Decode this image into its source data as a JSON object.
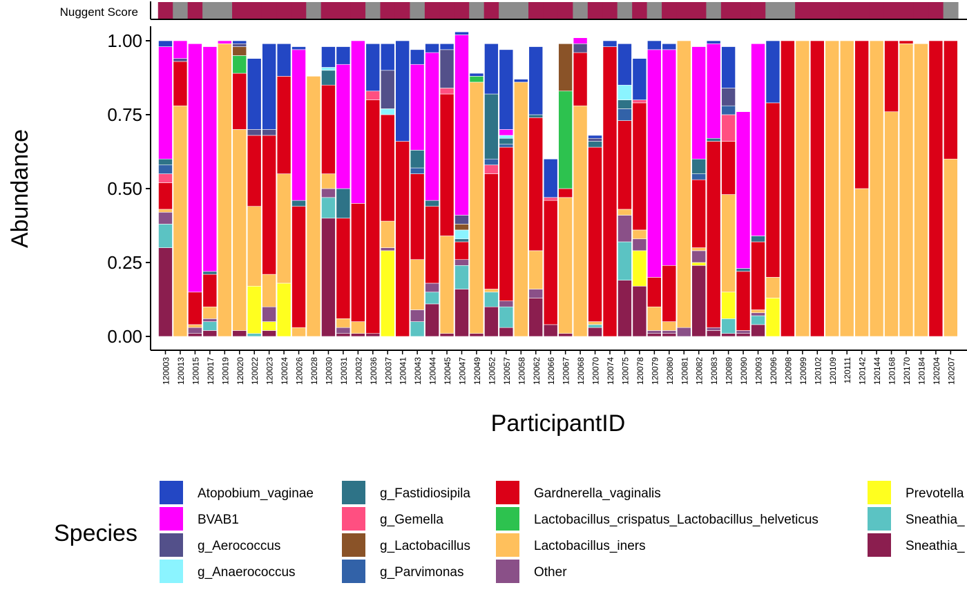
{
  "chart_data": {
    "type": "bar",
    "stacked": true,
    "xlabel": "ParticipantID",
    "ylabel": "Abundance",
    "ylim": [
      0,
      1
    ],
    "yticks": [
      "0.00",
      "0.25",
      "0.50",
      "0.75",
      "1.00"
    ],
    "ytick_values": [
      0,
      0.25,
      0.5,
      0.75,
      1
    ],
    "grid": false,
    "legend_title": "Species",
    "legend_position": "bottom",
    "nugget_label": "Nuggent Score",
    "nugget_colors": {
      "high": "#A21B4F",
      "low": "#8C8C8C"
    },
    "categories": [
      "120003",
      "120013",
      "120015",
      "120017",
      "120019",
      "120020",
      "120022",
      "120023",
      "120024",
      "120026",
      "120028",
      "120030",
      "120031",
      "120032",
      "120036",
      "120037",
      "120041",
      "120043",
      "120044",
      "120045",
      "120047",
      "120049",
      "120052",
      "120057",
      "120058",
      "120062",
      "120066",
      "120067",
      "120068",
      "120070",
      "120074",
      "120075",
      "120078",
      "120079",
      "120080",
      "120081",
      "120082",
      "120083",
      "120089",
      "120090",
      "120093",
      "120096",
      "120098",
      "120099",
      "120102",
      "120109",
      "120111",
      "120142",
      "120144",
      "120168",
      "120170",
      "120184",
      "120204",
      "120207"
    ],
    "nugget": [
      "high",
      "low",
      "high",
      "low",
      "low",
      "high",
      "high",
      "high",
      "high",
      "high",
      "low",
      "high",
      "high",
      "high",
      "low",
      "high",
      "high",
      "low",
      "high",
      "high",
      "high",
      "low",
      "high",
      "low",
      "low",
      "high",
      "high",
      "high",
      "low",
      "high",
      "high",
      "low",
      "high",
      "low",
      "high",
      "high",
      "high",
      "low",
      "high",
      "high",
      "high",
      "low",
      "low",
      "high",
      "high",
      "high",
      "high",
      "high",
      "high",
      "high",
      "high",
      "high",
      "high",
      "low"
    ],
    "series": [
      {
        "name": "Sneathia_",
        "color": "#8B1E4F",
        "values": [
          0.3,
          0,
          0.01,
          0.02,
          0,
          0.02,
          0,
          0.02,
          0,
          0,
          0,
          0.4,
          0.01,
          0.01,
          0.01,
          0,
          0,
          0,
          0.11,
          0.01,
          0.16,
          0.01,
          0.1,
          0.03,
          0,
          0.13,
          0.04,
          0.01,
          0,
          0.03,
          0,
          0.19,
          0.17,
          0.01,
          0.01,
          0,
          0.24,
          0.02,
          0.01,
          0.01,
          0.04,
          0,
          0,
          0,
          0,
          0,
          0,
          0,
          0,
          0,
          0,
          0,
          0,
          0
        ]
      },
      {
        "name": "Sneathia_",
        "color": "#5BC3C3",
        "values": [
          0.08,
          0,
          0,
          0.03,
          0,
          0,
          0.01,
          0,
          0,
          0,
          0,
          0.07,
          0,
          0,
          0,
          0,
          0,
          0.05,
          0.04,
          0,
          0.08,
          0,
          0.05,
          0.07,
          0,
          0,
          0,
          0,
          0,
          0.01,
          0,
          0.13,
          0,
          0,
          0,
          0,
          0,
          0,
          0.05,
          0,
          0.03,
          0,
          0,
          0,
          0,
          0,
          0,
          0,
          0,
          0,
          0,
          0,
          0,
          0
        ]
      },
      {
        "name": "Prevotella",
        "color": "#FFFF1F",
        "values": [
          0,
          0,
          0,
          0,
          0,
          0,
          0.16,
          0.03,
          0.18,
          0,
          0,
          0,
          0,
          0,
          0,
          0.29,
          0,
          0,
          0,
          0,
          0,
          0,
          0,
          0,
          0,
          0,
          0,
          0,
          0,
          0,
          0,
          0,
          0.12,
          0,
          0,
          0,
          0.01,
          0,
          0.09,
          0,
          0,
          0.13,
          0,
          0,
          0,
          0,
          0,
          0,
          0,
          0,
          0,
          0,
          0,
          0
        ]
      },
      {
        "name": "Other",
        "color": "#8A5088",
        "values": [
          0.04,
          0,
          0.02,
          0.01,
          0,
          0,
          0,
          0.05,
          0,
          0,
          0,
          0.03,
          0.02,
          0,
          0,
          0.01,
          0,
          0.04,
          0.03,
          0,
          0.02,
          0,
          0,
          0.02,
          0,
          0.03,
          0,
          0,
          0,
          0,
          0,
          0.09,
          0.04,
          0.01,
          0.01,
          0.03,
          0.04,
          0.01,
          0,
          0.01,
          0.01,
          0,
          0,
          0,
          0,
          0,
          0,
          0,
          0,
          0,
          0,
          0,
          0,
          0
        ]
      },
      {
        "name": "Lactobacillus_iners",
        "color": "#FFC05C",
        "values": [
          0.01,
          0.78,
          0.01,
          0.04,
          0.99,
          0.68,
          0.27,
          0.11,
          0.37,
          0.03,
          0.88,
          0.05,
          0.03,
          0.04,
          0,
          0.09,
          0,
          0.17,
          0,
          0.33,
          0,
          0.85,
          0.01,
          0,
          0.86,
          0.13,
          0,
          0.46,
          0.78,
          0.01,
          0,
          0.02,
          0.03,
          0.08,
          0.03,
          0.97,
          0.01,
          0,
          0.33,
          0,
          0.01,
          0.07,
          0,
          1.0,
          0,
          1.0,
          1.0,
          0.5,
          1.0,
          0.76,
          0.99,
          0.99,
          0,
          0.6
        ]
      },
      {
        "name": "Gardnerella_vaginalis",
        "color": "#DB0017",
        "values": [
          0.09,
          0.15,
          0.11,
          0.11,
          0,
          0.19,
          0.24,
          0.47,
          0.33,
          0.41,
          0,
          0.3,
          0.34,
          0.4,
          0.79,
          0.36,
          0.66,
          0.29,
          0.26,
          0.48,
          0.06,
          0,
          0.39,
          0.52,
          0,
          0.45,
          0.42,
          0.03,
          0.18,
          0.59,
          0.98,
          0.3,
          0.43,
          0.1,
          0.19,
          0,
          0.23,
          0.63,
          0.18,
          0.2,
          0.23,
          0.59,
          1.0,
          0,
          1.0,
          0,
          0,
          0.5,
          0,
          0.24,
          0.01,
          0,
          1.0,
          0.4
        ]
      },
      {
        "name": "Lactobacillus_crispatus_Lactobacillus_helveticus",
        "color": "#2DC24F",
        "values": [
          0,
          0,
          0,
          0,
          0,
          0.06,
          0,
          0,
          0,
          0,
          0,
          0,
          0,
          0,
          0,
          0,
          0,
          0,
          0,
          0,
          0,
          0.02,
          0,
          0,
          0,
          0,
          0,
          0.33,
          0,
          0,
          0,
          0,
          0,
          0,
          0,
          0,
          0,
          0,
          0,
          0,
          0,
          0,
          0,
          0,
          0,
          0,
          0,
          0,
          0,
          0,
          0,
          0,
          0,
          0
        ]
      },
      {
        "name": "g_Gemella",
        "color": "#FF4F81",
        "values": [
          0.03,
          0,
          0,
          0,
          0,
          0,
          0,
          0,
          0,
          0,
          0,
          0,
          0,
          0,
          0.03,
          0,
          0,
          0,
          0,
          0.02,
          0,
          0,
          0.03,
          0,
          0,
          0,
          0.01,
          0,
          0,
          0,
          0,
          0,
          0.01,
          0,
          0,
          0,
          0,
          0,
          0.09,
          0,
          0,
          0,
          0,
          0,
          0,
          0,
          0,
          0,
          0,
          0,
          0,
          0,
          0,
          0
        ]
      },
      {
        "name": "g_Parvimonas",
        "color": "#3262A8",
        "values": [
          0.03,
          0,
          0,
          0,
          0,
          0,
          0,
          0,
          0,
          0,
          0,
          0,
          0,
          0,
          0,
          0,
          0,
          0.02,
          0,
          0,
          0,
          0,
          0.02,
          0.01,
          0,
          0,
          0,
          0,
          0,
          0,
          0,
          0.04,
          0,
          0,
          0,
          0,
          0.02,
          0,
          0.03,
          0,
          0,
          0,
          0,
          0,
          0,
          0,
          0,
          0,
          0,
          0,
          0,
          0,
          0,
          0
        ]
      },
      {
        "name": "g_Fastidiosipila",
        "color": "#2E7387",
        "values": [
          0.02,
          0,
          0,
          0.01,
          0,
          0,
          0,
          0,
          0,
          0.02,
          0,
          0.05,
          0.1,
          0,
          0,
          0,
          0,
          0.06,
          0.02,
          0,
          0.01,
          0,
          0.22,
          0.02,
          0,
          0.01,
          0,
          0,
          0,
          0.02,
          0,
          0.03,
          0,
          0,
          0,
          0,
          0.05,
          0.01,
          0,
          0.01,
          0.02,
          0,
          0,
          0,
          0,
          0,
          0,
          0,
          0,
          0,
          0,
          0,
          0,
          0
        ]
      },
      {
        "name": "g_Anaerococcus",
        "color": "#8BF4FF",
        "values": [
          0,
          0,
          0,
          0,
          0,
          0,
          0,
          0,
          0,
          0,
          0,
          0.01,
          0,
          0,
          0,
          0.02,
          0,
          0,
          0,
          0,
          0.03,
          0,
          0,
          0.01,
          0,
          0,
          0,
          0,
          0,
          0,
          0,
          0.05,
          0,
          0,
          0,
          0,
          0,
          0,
          0,
          0,
          0,
          0,
          0,
          0,
          0,
          0,
          0,
          0,
          0,
          0,
          0,
          0,
          0,
          0
        ]
      },
      {
        "name": "g_Lactobacillus",
        "color": "#8A5328",
        "values": [
          0,
          0,
          0,
          0,
          0,
          0.03,
          0,
          0,
          0,
          0,
          0,
          0,
          0,
          0,
          0,
          0,
          0,
          0,
          0,
          0,
          0.02,
          0,
          0,
          0,
          0,
          0,
          0,
          0.16,
          0,
          0,
          0,
          0,
          0,
          0,
          0,
          0,
          0,
          0,
          0,
          0,
          0,
          0,
          0,
          0,
          0,
          0,
          0,
          0,
          0,
          0,
          0,
          0,
          0,
          0
        ]
      },
      {
        "name": "g_Aerococcus",
        "color": "#53508A",
        "values": [
          0,
          0.01,
          0,
          0,
          0,
          0.01,
          0.02,
          0.02,
          0,
          0,
          0,
          0,
          0,
          0,
          0,
          0.13,
          0,
          0,
          0,
          0.13,
          0.03,
          0,
          0,
          0,
          0,
          0,
          0,
          0,
          0.03,
          0.01,
          0,
          0,
          0,
          0,
          0,
          0,
          0,
          0,
          0.06,
          0,
          0,
          0,
          0,
          0,
          0,
          0,
          0,
          0,
          0,
          0,
          0,
          0,
          0,
          0
        ]
      },
      {
        "name": "BVAB1",
        "color": "#FF00FF",
        "values": [
          0.38,
          0.06,
          0.84,
          0.76,
          0.01,
          0,
          0,
          0,
          0,
          0.51,
          0,
          0,
          0.42,
          0.55,
          0,
          0,
          0,
          0.29,
          0.5,
          0,
          0.61,
          0,
          0,
          0.02,
          0,
          0,
          0,
          0,
          0.02,
          0,
          0,
          0,
          0,
          0.77,
          0.73,
          0,
          0.38,
          0.32,
          0,
          0.53,
          0.65,
          0,
          0,
          0,
          0,
          0,
          0,
          0,
          0,
          0,
          0,
          0,
          0,
          0
        ]
      },
      {
        "name": "Atopobium_vaginae",
        "color": "#2347C4",
        "values": [
          0.02,
          0,
          0,
          0,
          0,
          0.01,
          0.24,
          0.29,
          0.11,
          0.01,
          0,
          0.07,
          0.06,
          0,
          0.16,
          0.09,
          0.34,
          0.05,
          0.03,
          0.02,
          0.01,
          0.01,
          0.17,
          0.27,
          0.01,
          0.23,
          0.13,
          0,
          0,
          0.01,
          0.02,
          0.14,
          0.14,
          0.03,
          0.02,
          0,
          0,
          0.01,
          0.14,
          0,
          0,
          0.21,
          0,
          0,
          0,
          0,
          0,
          0,
          0,
          0,
          0,
          0,
          0,
          0
        ]
      }
    ],
    "legend": [
      {
        "name": "Atopobium_vaginae",
        "color": "#2347C4"
      },
      {
        "name": "BVAB1",
        "color": "#FF00FF"
      },
      {
        "name": "g_Aerococcus",
        "color": "#53508A"
      },
      {
        "name": "g_Anaerococcus",
        "color": "#8BF4FF"
      },
      {
        "name": "g_Fastidiosipila",
        "color": "#2E7387"
      },
      {
        "name": "g_Gemella",
        "color": "#FF4F81"
      },
      {
        "name": "g_Lactobacillus",
        "color": "#8A5328"
      },
      {
        "name": "g_Parvimonas",
        "color": "#3262A8"
      },
      {
        "name": "Gardnerella_vaginalis",
        "color": "#DB0017"
      },
      {
        "name": "Lactobacillus_crispatus_Lactobacillus_helveticus",
        "color": "#2DC24F"
      },
      {
        "name": "Lactobacillus_iners",
        "color": "#FFC05C"
      },
      {
        "name": "Other",
        "color": "#8A5088"
      },
      {
        "name": "Prevotella",
        "color": "#FFFF1F"
      },
      {
        "name": "Sneathia_",
        "color": "#5BC3C3"
      },
      {
        "name": "Sneathia_",
        "color": "#8B1E4F"
      }
    ]
  }
}
